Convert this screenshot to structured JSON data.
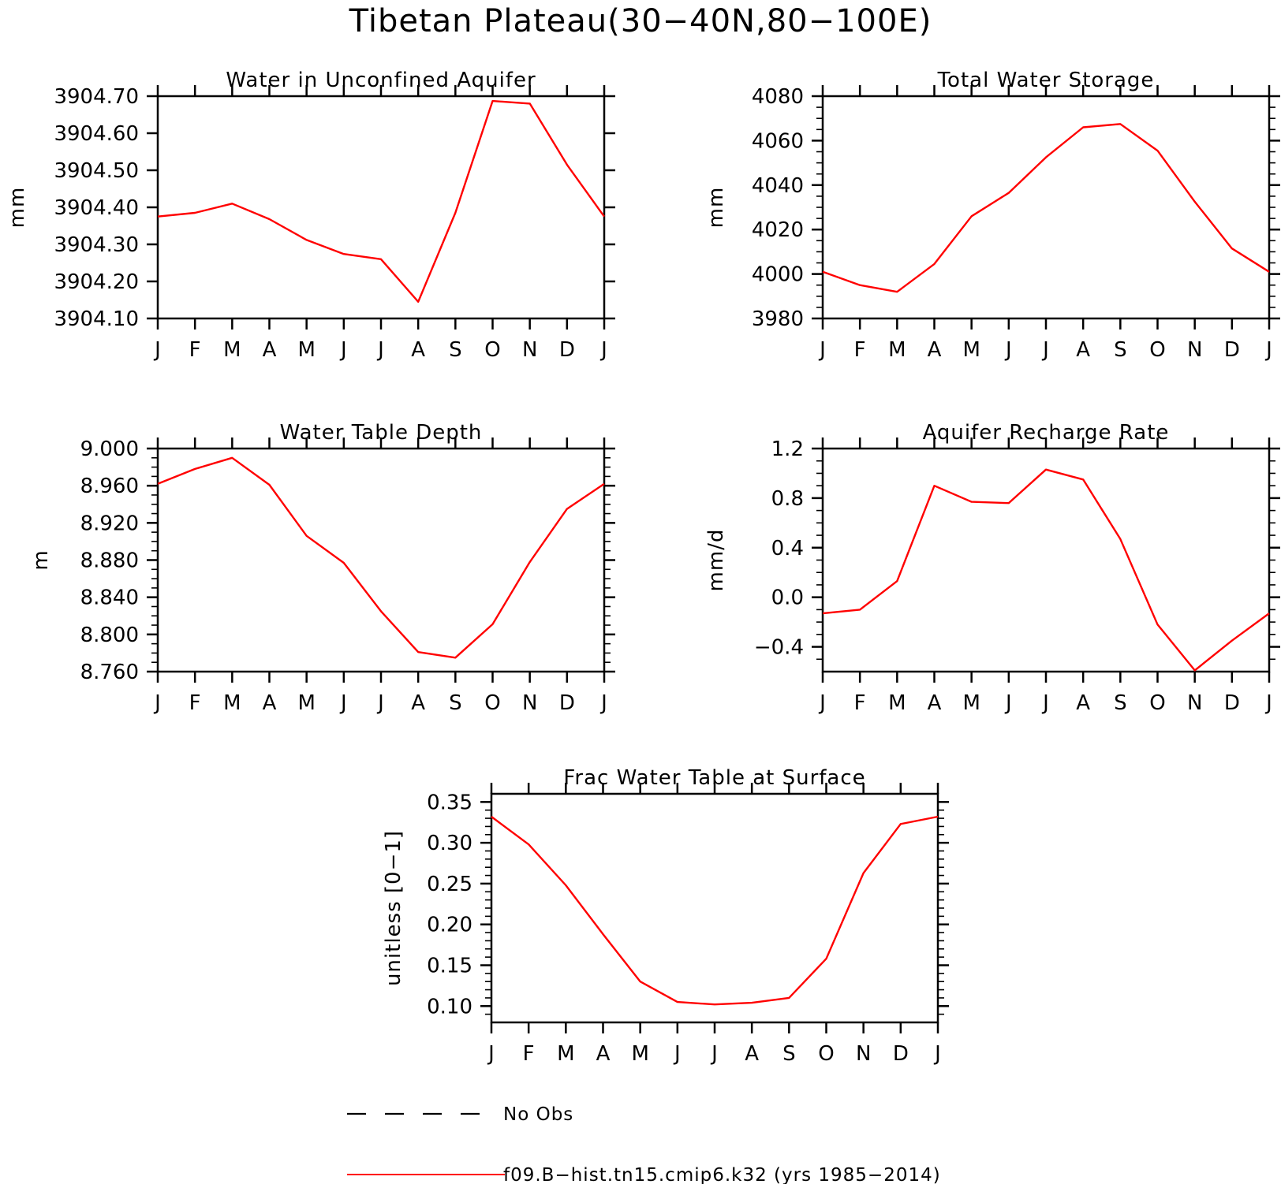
{
  "title": "Tibetan Plateau(30−40N,80−100E)",
  "colors": {
    "model_line": "#ff0000",
    "obs_line": "#000000",
    "axes": "#000000"
  },
  "legend": {
    "items": [
      {
        "label": "No Obs",
        "style": "dashed",
        "color": "#000000"
      },
      {
        "label": "f09.B−hist.tn15.cmip6.k32 (yrs 1985−2014)",
        "style": "solid",
        "color": "#ff0000"
      }
    ]
  },
  "chart_data": [
    {
      "type": "line",
      "title": "Water in Unconfined Aquifer",
      "ylabel": "mm",
      "categories": [
        "J",
        "F",
        "M",
        "A",
        "M",
        "J",
        "J",
        "A",
        "S",
        "O",
        "N",
        "D",
        "J"
      ],
      "ylim": [
        3904.1,
        3904.7
      ],
      "yticks": [
        3904.1,
        3904.2,
        3904.3,
        3904.4,
        3904.5,
        3904.6,
        3904.7
      ],
      "ytick_labels": [
        "3904.10",
        "3904.20",
        "3904.30",
        "3904.40",
        "3904.50",
        "3904.60",
        "3904.70"
      ],
      "yminor": [],
      "series": [
        {
          "values": [
            3904.375,
            3904.385,
            3904.41,
            3904.368,
            3904.312,
            3904.274,
            3904.26,
            3904.145,
            3904.385,
            3904.687,
            3904.68,
            3904.515,
            3904.375
          ]
        }
      ]
    },
    {
      "type": "line",
      "title": "Total Water Storage",
      "ylabel": "mm",
      "categories": [
        "J",
        "F",
        "M",
        "A",
        "M",
        "J",
        "J",
        "A",
        "S",
        "O",
        "N",
        "D",
        "J"
      ],
      "ylim": [
        3980,
        4080
      ],
      "yticks": [
        3980,
        4000,
        4020,
        4040,
        4060,
        4080
      ],
      "ytick_labels": [
        "3980",
        "4000",
        "4020",
        "4040",
        "4060",
        "4080"
      ],
      "yminor": [
        3985,
        3990,
        3995,
        4005,
        4010,
        4015,
        4025,
        4030,
        4035,
        4045,
        4050,
        4055,
        4065,
        4070,
        4075
      ],
      "series": [
        {
          "values": [
            4001,
            3995,
            3992,
            4004.5,
            4026,
            4036.5,
            4052.5,
            4066,
            4067.5,
            4055.5,
            4032.5,
            4011.5,
            4001
          ]
        }
      ]
    },
    {
      "type": "line",
      "title": "Water Table Depth",
      "ylabel": "m",
      "categories": [
        "J",
        "F",
        "M",
        "A",
        "M",
        "J",
        "J",
        "A",
        "S",
        "O",
        "N",
        "D",
        "J"
      ],
      "ylim": [
        8.76,
        9.0
      ],
      "yticks": [
        8.76,
        8.8,
        8.84,
        8.88,
        8.92,
        8.96,
        9.0
      ],
      "ytick_labels": [
        "8.760",
        "8.800",
        "8.840",
        "8.880",
        "8.920",
        "8.960",
        "9.000"
      ],
      "yminor": [
        8.77,
        8.78,
        8.79,
        8.81,
        8.82,
        8.83,
        8.85,
        8.86,
        8.87,
        8.89,
        8.9,
        8.91,
        8.93,
        8.94,
        8.95,
        8.97,
        8.98,
        8.99
      ],
      "series": [
        {
          "values": [
            8.962,
            8.978,
            8.99,
            8.961,
            8.906,
            8.877,
            8.825,
            8.781,
            8.775,
            8.811,
            8.878,
            8.935,
            8.962
          ]
        }
      ]
    },
    {
      "type": "line",
      "title": "Aquifer Recharge Rate",
      "ylabel": "mm/d",
      "categories": [
        "J",
        "F",
        "M",
        "A",
        "M",
        "J",
        "J",
        "A",
        "S",
        "O",
        "N",
        "D",
        "J"
      ],
      "ylim": [
        -0.6,
        1.2
      ],
      "yticks": [
        -0.4,
        0.0,
        0.4,
        0.8,
        1.2
      ],
      "ytick_labels": [
        "−0.4",
        "0.0",
        "0.4",
        "0.8",
        "1.2"
      ],
      "yminor": [
        -0.5,
        -0.3,
        -0.2,
        -0.1,
        0.1,
        0.2,
        0.3,
        0.5,
        0.6,
        0.7,
        0.9,
        1.0,
        1.1
      ],
      "series": [
        {
          "values": [
            -0.13,
            -0.1,
            0.13,
            0.9,
            0.77,
            0.76,
            1.03,
            0.95,
            0.47,
            -0.22,
            -0.59,
            -0.35,
            -0.13
          ]
        }
      ]
    },
    {
      "type": "line",
      "title": "Frac Water Table at Surface",
      "ylabel": "unitless [0−1]",
      "categories": [
        "J",
        "F",
        "M",
        "A",
        "M",
        "J",
        "J",
        "A",
        "S",
        "O",
        "N",
        "D",
        "J"
      ],
      "ylim": [
        0.08,
        0.36
      ],
      "yticks": [
        0.1,
        0.15,
        0.2,
        0.25,
        0.3,
        0.35
      ],
      "ytick_labels": [
        "0.10",
        "0.15",
        "0.20",
        "0.25",
        "0.30",
        "0.35"
      ],
      "yminor": [
        0.09,
        0.11,
        0.12,
        0.13,
        0.14,
        0.16,
        0.17,
        0.18,
        0.19,
        0.21,
        0.22,
        0.23,
        0.24,
        0.26,
        0.27,
        0.28,
        0.29,
        0.31,
        0.32,
        0.33,
        0.34
      ],
      "series": [
        {
          "values": [
            0.332,
            0.298,
            0.248,
            0.188,
            0.13,
            0.105,
            0.102,
            0.104,
            0.11,
            0.158,
            0.263,
            0.323,
            0.332
          ]
        }
      ]
    }
  ]
}
